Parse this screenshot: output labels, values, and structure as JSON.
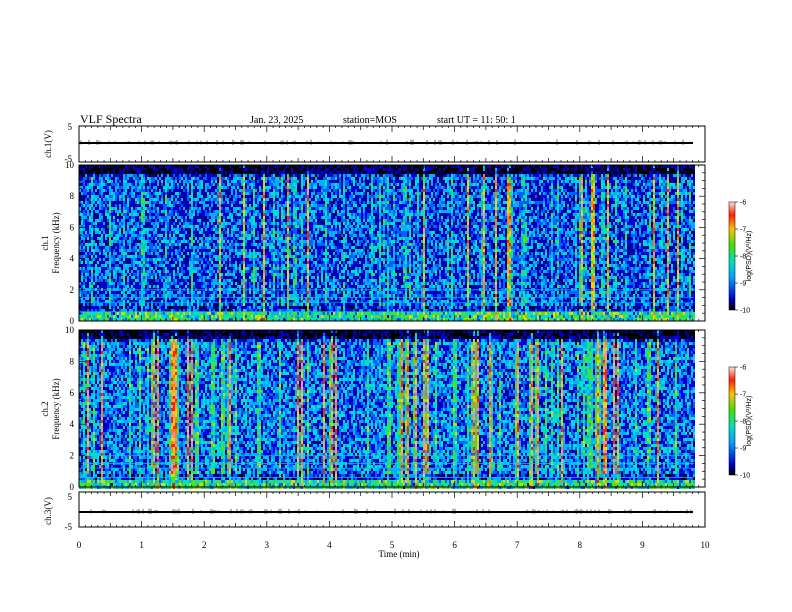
{
  "header": {
    "title": "VLF Spectra",
    "date": "Jan. 23, 2025",
    "station": "station=MOS",
    "start": "start UT =  11: 50: 1"
  },
  "chart_data": [
    {
      "type": "line",
      "panel": "ch1-waveform",
      "ylabel": "ch.1(V)",
      "ylim": [
        -5,
        5
      ],
      "yticks": [
        "5",
        "-5"
      ],
      "xlim": [
        0,
        10
      ],
      "series": [
        {
          "x": [
            0,
            9.82
          ],
          "values": [
            0,
            0
          ]
        }
      ]
    },
    {
      "type": "heatmap",
      "panel": "ch1-spectrogram",
      "ylabel": "ch.1",
      "ylabel2": "Frequency (kHz)",
      "ylim": [
        0,
        10
      ],
      "yticks": [
        0,
        2,
        4,
        6,
        8,
        10
      ],
      "xlim": [
        0,
        10
      ],
      "data_end_min": 9.82,
      "colorbar": {
        "label": "log(PSD)(V²/Hz)",
        "range": [
          -10,
          -6
        ],
        "ticks": [
          "-6",
          "-7",
          "-8",
          "-9",
          "-10"
        ]
      }
    },
    {
      "type": "heatmap",
      "panel": "ch2-spectrogram",
      "ylabel": "ch.2",
      "ylabel2": "Frequency (kHz)",
      "ylim": [
        0,
        10
      ],
      "yticks": [
        0,
        2,
        4,
        6,
        8,
        10
      ],
      "xlim": [
        0,
        10
      ],
      "data_end_min": 9.82,
      "colorbar": {
        "label": "log(PSD)(V²/Hz)",
        "range": [
          -10,
          -6
        ],
        "ticks": [
          "-6",
          "-7",
          "-8",
          "-9",
          "-10"
        ]
      }
    },
    {
      "type": "line",
      "panel": "ch3-waveform",
      "ylabel": "ch.3(V)",
      "ylim": [
        -5,
        5
      ],
      "yticks": [
        "5",
        "-5"
      ],
      "xlim": [
        0,
        10
      ],
      "series": [
        {
          "x": [
            0,
            9.82
          ],
          "values": [
            0,
            0
          ]
        }
      ]
    }
  ],
  "xaxis": {
    "label": "Time (min)",
    "ticks": [
      "0",
      "1",
      "2",
      "3",
      "4",
      "5",
      "6",
      "7",
      "8",
      "9",
      "10"
    ]
  }
}
